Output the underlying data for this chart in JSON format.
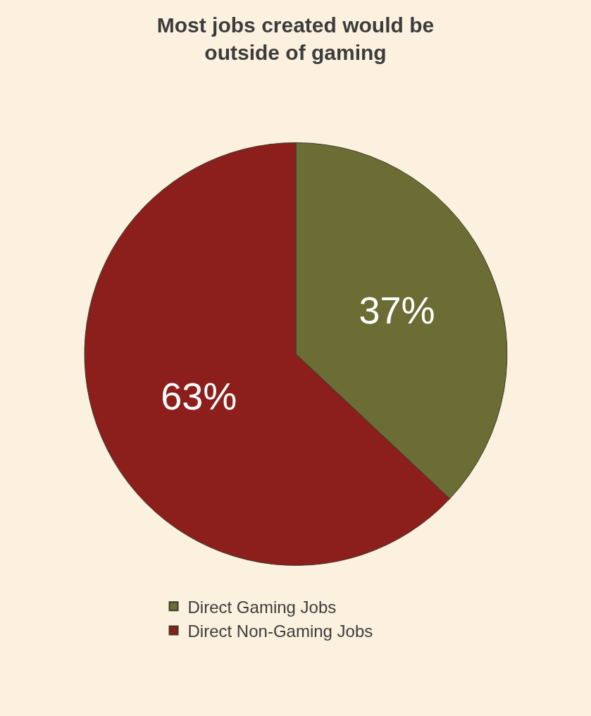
{
  "chart_data": {
    "type": "pie",
    "title": "Most jobs created would be\noutside of gaming",
    "categories": [
      "Direct Gaming Jobs",
      "Direct Non-Gaming Jobs"
    ],
    "values": [
      37,
      63
    ],
    "value_labels": [
      "37%",
      "63%"
    ],
    "colors": [
      "#6b6d34",
      "#8c1f1b"
    ],
    "legend": "bottom"
  }
}
